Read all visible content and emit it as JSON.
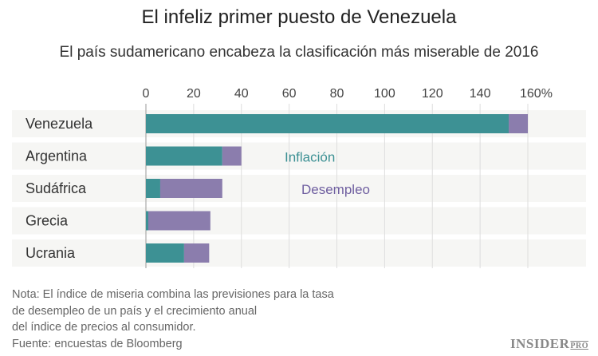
{
  "chart_data": {
    "type": "bar",
    "orientation": "horizontal",
    "stacked": true,
    "title": "El infeliz primer puesto de Venezuela",
    "subtitle": "El país sudamericano encabeza la clasificación más miserable de 2016",
    "categories": [
      "Venezuela",
      "Argentina",
      "Sudáfrica",
      "Grecia",
      "Ucrania"
    ],
    "series": [
      {
        "name": "Inflación",
        "color": "#3d9194",
        "values": [
          152,
          32,
          6,
          1,
          16
        ]
      },
      {
        "name": "Desempleo",
        "color": "#8b7dad",
        "values": [
          8,
          8,
          26,
          26,
          10.5
        ]
      }
    ],
    "xlim": [
      0,
      160
    ],
    "xticks": [
      "0",
      "20",
      "40",
      "60",
      "80",
      "100",
      "120",
      "140",
      "160%"
    ],
    "grid": true,
    "legend_placement": "inline"
  },
  "note": [
    "Nota: El índice de miseria combina las previsiones para la tasa",
    "de desempleo de un país y el crecimiento anual",
    "del índice de precios al consumidor.",
    "Fuente: encuestas de Bloomberg"
  ],
  "logo": {
    "main": "INSIDER",
    "sub": "PRO"
  }
}
